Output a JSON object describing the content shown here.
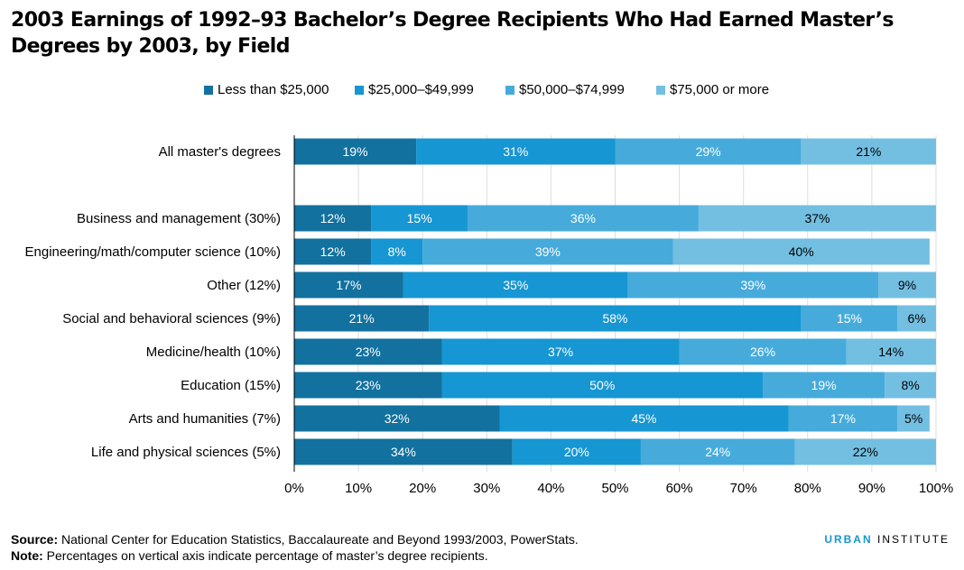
{
  "title": "2003 Earnings of 1992–93 Bachelor’s Degree Recipients Who Had Earned Master’s Degrees by 2003, by Field",
  "colors": [
    "#12719e",
    "#1696d2",
    "#46abdb",
    "#73bfe2"
  ],
  "chart_data": {
    "type": "bar",
    "orientation": "horizontal",
    "stacked": true,
    "title": "2003 Earnings of 1992–93 Bachelor’s Degree Recipients Who Had Earned Master’s Degrees by 2003, by Field",
    "categories": [
      "All master's degrees",
      "Business and management (30%)",
      "Engineering/math/computer science (10%)",
      "Other (12%)",
      "Social and behavioral sciences (9%)",
      "Medicine/health (10%)",
      "Education (15%)",
      "Arts and humanities (7%)",
      "Life and physical sciences (5%)"
    ],
    "series": [
      {
        "name": "Less than $25,000",
        "values": [
          19,
          12,
          12,
          17,
          21,
          23,
          23,
          32,
          34
        ]
      },
      {
        "name": "$25,000–$49,999",
        "values": [
          31,
          15,
          8,
          35,
          58,
          37,
          50,
          45,
          20
        ]
      },
      {
        "name": "$50,000–$74,999",
        "values": [
          29,
          36,
          39,
          39,
          15,
          26,
          19,
          17,
          24
        ]
      },
      {
        "name": "$75,000 or more",
        "values": [
          21,
          37,
          40,
          9,
          6,
          14,
          8,
          5,
          22
        ]
      }
    ],
    "xlim": [
      0,
      100
    ],
    "x_ticks": [
      "0%",
      "10%",
      "20%",
      "30%",
      "40%",
      "50%",
      "60%",
      "70%",
      "80%",
      "90%",
      "100%"
    ],
    "grid": true,
    "legend": "top-center"
  },
  "footer": {
    "source_label": "Source:",
    "source_text": "National Center for Education Statistics, Baccalaureate and Beyond 1993/2003, PowerStats.",
    "note_label": "Note:",
    "note_text": "Percentages on vertical axis indicate percentage of master’s degree recipients."
  },
  "brand": {
    "first": "URBAN",
    "second": "INSTITUTE"
  }
}
